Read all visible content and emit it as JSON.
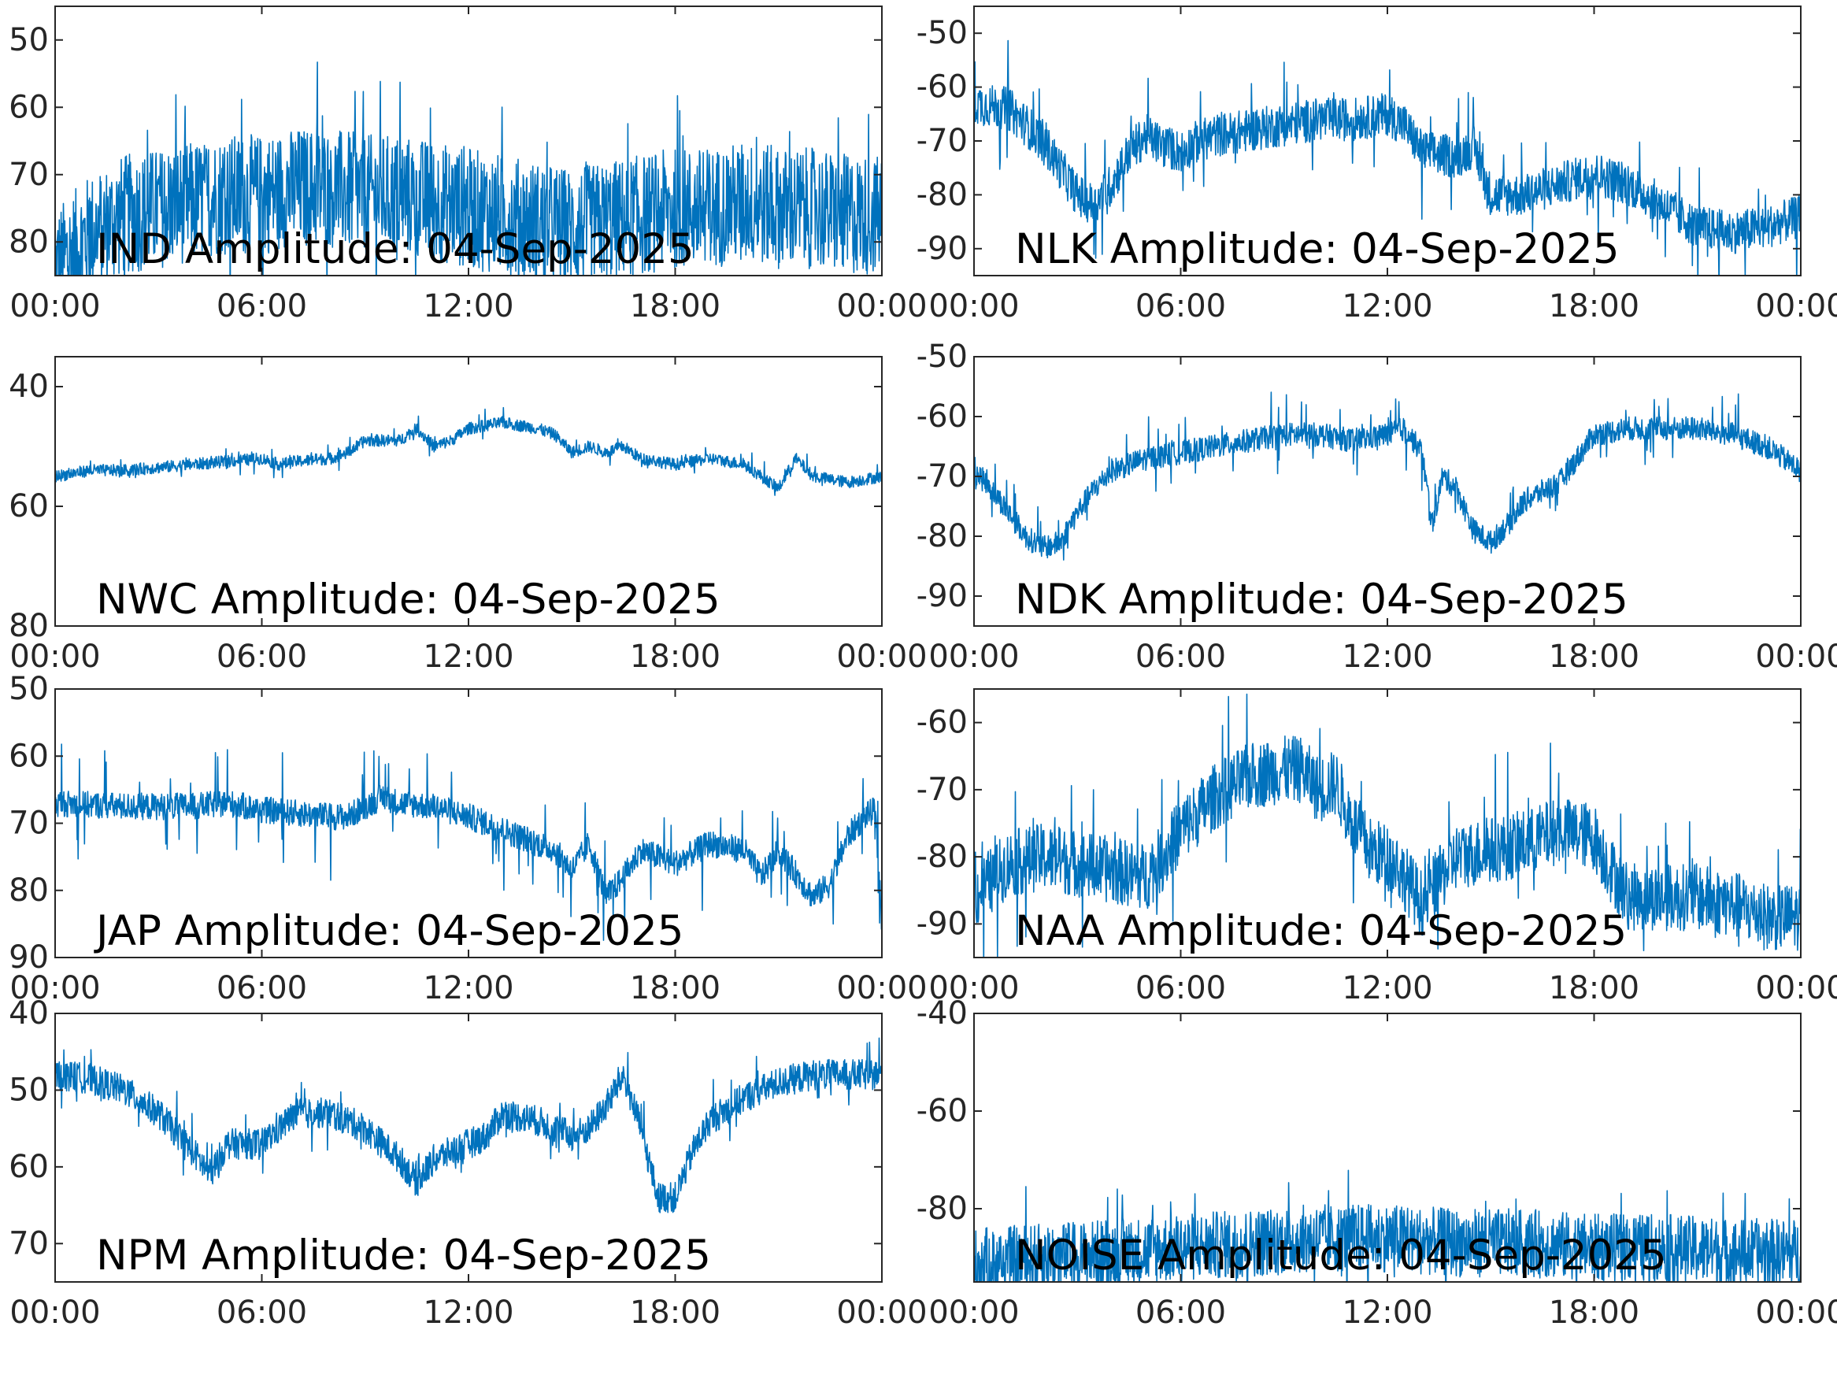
{
  "chart_data": [
    {
      "type": "line",
      "title": "IND Amplitude: 04-Sep-2025",
      "x_ticks": [
        "00:00",
        "06:00",
        "12:00",
        "18:00",
        "00:00"
      ],
      "y_ticks": [
        "50",
        "60",
        "70",
        "80"
      ],
      "y_tick_values": [
        -50,
        -60,
        -70,
        -80
      ],
      "ylim": [
        -85,
        -45
      ],
      "series": [
        {
          "points": [
            [
              0,
              -84
            ],
            [
              1,
              -79
            ],
            [
              2,
              -76
            ],
            [
              3,
              -75
            ],
            [
              4,
              -74
            ],
            [
              5,
              -73
            ],
            [
              6,
              -73
            ],
            [
              7,
              -72
            ],
            [
              8,
              -72
            ],
            [
              9,
              -73
            ],
            [
              10,
              -73
            ],
            [
              11,
              -74
            ],
            [
              12,
              -75
            ],
            [
              13,
              -76
            ],
            [
              14,
              -77
            ],
            [
              15,
              -78
            ],
            [
              16,
              -77
            ],
            [
              17,
              -76
            ],
            [
              18,
              -75
            ],
            [
              19,
              -75
            ],
            [
              20,
              -74
            ],
            [
              21,
              -75
            ],
            [
              22,
              -75
            ],
            [
              23,
              -76
            ],
            [
              24,
              -76
            ]
          ],
          "band": 9,
          "spike": 6
        }
      ]
    },
    {
      "type": "line",
      "title": "NLK Amplitude: 04-Sep-2025",
      "x_ticks": [
        "00:00",
        "06:00",
        "12:00",
        "18:00",
        "00:00"
      ],
      "y_ticks": [
        "-50",
        "-60",
        "-70",
        "-80",
        "-90"
      ],
      "y_tick_values": [
        -50,
        -60,
        -70,
        -80,
        -90
      ],
      "ylim": [
        -95,
        -45
      ],
      "series": [
        {
          "points": [
            [
              0,
              -63
            ],
            [
              1,
              -64
            ],
            [
              2,
              -70
            ],
            [
              3,
              -80
            ],
            [
              3.5,
              -82
            ],
            [
              4,
              -78
            ],
            [
              4.5,
              -72
            ],
            [
              5,
              -69
            ],
            [
              5.5,
              -71
            ],
            [
              6,
              -72
            ],
            [
              6.5,
              -70
            ],
            [
              7,
              -69
            ],
            [
              8,
              -68
            ],
            [
              9,
              -67
            ],
            [
              10,
              -66
            ],
            [
              11,
              -66
            ],
            [
              12,
              -65
            ],
            [
              12.5,
              -67
            ],
            [
              13,
              -72
            ],
            [
              14,
              -73
            ],
            [
              14.5,
              -71
            ],
            [
              15,
              -80
            ],
            [
              16,
              -80
            ],
            [
              17,
              -78
            ],
            [
              18,
              -76
            ],
            [
              19,
              -78
            ],
            [
              20,
              -82
            ],
            [
              21,
              -86
            ],
            [
              22,
              -87
            ],
            [
              23,
              -86
            ],
            [
              24,
              -84
            ]
          ],
          "band": 4,
          "spike": 5
        }
      ]
    },
    {
      "type": "line",
      "title": "NWC Amplitude: 04-Sep-2025",
      "x_ticks": [
        "00:00",
        "06:00",
        "12:00",
        "18:00",
        "00:00"
      ],
      "y_ticks": [
        "40",
        "60",
        "80"
      ],
      "y_tick_values": [
        -40,
        -60,
        -80
      ],
      "ylim": [
        -80,
        -35
      ],
      "series": [
        {
          "points": [
            [
              0,
              -55
            ],
            [
              1,
              -54
            ],
            [
              2,
              -54
            ],
            [
              3,
              -53.5
            ],
            [
              4,
              -53
            ],
            [
              5,
              -52.5
            ],
            [
              6,
              -52
            ],
            [
              6.5,
              -53
            ],
            [
              7,
              -52.5
            ],
            [
              8,
              -52
            ],
            [
              8.5,
              -51
            ],
            [
              9,
              -49
            ],
            [
              10,
              -49
            ],
            [
              10.5,
              -47
            ],
            [
              11,
              -50
            ],
            [
              11.5,
              -49
            ],
            [
              12,
              -47
            ],
            [
              13,
              -46
            ],
            [
              14,
              -47
            ],
            [
              14.5,
              -48
            ],
            [
              15,
              -51
            ],
            [
              15.5,
              -50
            ],
            [
              16,
              -51
            ],
            [
              16.5,
              -50
            ],
            [
              17,
              -52
            ],
            [
              18,
              -53
            ],
            [
              19,
              -52
            ],
            [
              20,
              -53
            ],
            [
              20.5,
              -55
            ],
            [
              21,
              -57
            ],
            [
              21.5,
              -52
            ],
            [
              22,
              -55
            ],
            [
              23,
              -56
            ],
            [
              24,
              -55
            ]
          ],
          "band": 1,
          "spike": 1
        }
      ]
    },
    {
      "type": "line",
      "title": "NDK Amplitude: 04-Sep-2025",
      "x_ticks": [
        "00:00",
        "06:00",
        "12:00",
        "18:00",
        "00:00"
      ],
      "y_ticks": [
        "-50",
        "-60",
        "-70",
        "-80",
        "-90"
      ],
      "y_tick_values": [
        -50,
        -60,
        -70,
        -80,
        -90
      ],
      "ylim": [
        -95,
        -50
      ],
      "series": [
        {
          "points": [
            [
              0,
              -69
            ],
            [
              0.5,
              -72
            ],
            [
              1,
              -76
            ],
            [
              1.5,
              -80
            ],
            [
              2,
              -82
            ],
            [
              2.5,
              -81
            ],
            [
              3,
              -76
            ],
            [
              3.5,
              -72
            ],
            [
              4,
              -69
            ],
            [
              5,
              -67
            ],
            [
              6,
              -66
            ],
            [
              7,
              -65
            ],
            [
              8,
              -64
            ],
            [
              9,
              -63
            ],
            [
              10,
              -63
            ],
            [
              11,
              -64
            ],
            [
              12,
              -63
            ],
            [
              12.5,
              -62
            ],
            [
              13,
              -66
            ],
            [
              13.3,
              -78
            ],
            [
              13.6,
              -70
            ],
            [
              14,
              -72
            ],
            [
              14.5,
              -79
            ],
            [
              15,
              -81
            ],
            [
              15.5,
              -78
            ],
            [
              16,
              -74
            ],
            [
              17,
              -71
            ],
            [
              17.5,
              -67
            ],
            [
              18,
              -63
            ],
            [
              19,
              -62
            ],
            [
              20,
              -62
            ],
            [
              21,
              -62
            ],
            [
              22,
              -63
            ],
            [
              23,
              -65
            ],
            [
              24,
              -69
            ]
          ],
          "band": 2,
          "spike": 3
        }
      ]
    },
    {
      "type": "line",
      "title": "JAP Amplitude: 04-Sep-2025",
      "x_ticks": [
        "00:00",
        "06:00",
        "12:00",
        "18:00",
        "00:00"
      ],
      "y_ticks": [
        "50",
        "60",
        "70",
        "80",
        "90"
      ],
      "y_tick_values": [
        -50,
        -60,
        -70,
        -80,
        -90
      ],
      "ylim": [
        -90,
        -50
      ],
      "series": [
        {
          "points": [
            [
              0,
              -67
            ],
            [
              2,
              -67.5
            ],
            [
              4,
              -67.5
            ],
            [
              5,
              -67
            ],
            [
              6,
              -68
            ],
            [
              7,
              -68.5
            ],
            [
              8,
              -69
            ],
            [
              8.5,
              -69
            ],
            [
              9.5,
              -66
            ],
            [
              10,
              -67
            ],
            [
              11,
              -67.5
            ],
            [
              12,
              -69
            ],
            [
              13,
              -71
            ],
            [
              14,
              -73
            ],
            [
              14.5,
              -74
            ],
            [
              15,
              -77
            ],
            [
              15.5,
              -73
            ],
            [
              16,
              -81
            ],
            [
              16.5,
              -78
            ],
            [
              17,
              -74
            ],
            [
              18,
              -76
            ],
            [
              19,
              -73
            ],
            [
              20,
              -74
            ],
            [
              20.5,
              -78
            ],
            [
              21,
              -74
            ],
            [
              22,
              -81
            ],
            [
              22.5,
              -79
            ],
            [
              23,
              -72
            ],
            [
              23.5,
              -69
            ],
            [
              23.8,
              -68
            ],
            [
              24,
              -85
            ]
          ],
          "band": 2,
          "spike": 4
        }
      ]
    },
    {
      "type": "line",
      "title": "NAA Amplitude: 04-Sep-2025",
      "x_ticks": [
        "00:00",
        "06:00",
        "12:00",
        "18:00",
        "00:00"
      ],
      "y_ticks": [
        "-60",
        "-70",
        "-80",
        "-90"
      ],
      "y_tick_values": [
        -60,
        -70,
        -80,
        -90
      ],
      "ylim": [
        -95,
        -55
      ],
      "series": [
        {
          "points": [
            [
              0,
              -86
            ],
            [
              1,
              -81
            ],
            [
              2,
              -80
            ],
            [
              3,
              -81
            ],
            [
              4,
              -82
            ],
            [
              5,
              -83
            ],
            [
              5.5,
              -80
            ],
            [
              6,
              -76
            ],
            [
              7,
              -71
            ],
            [
              8,
              -68
            ],
            [
              9,
              -67
            ],
            [
              9.5,
              -67
            ],
            [
              10,
              -70
            ],
            [
              10.5,
              -69
            ],
            [
              11,
              -75
            ],
            [
              11.5,
              -79
            ],
            [
              12,
              -80
            ],
            [
              12.5,
              -83
            ],
            [
              13,
              -87
            ],
            [
              14,
              -80
            ],
            [
              15,
              -79
            ],
            [
              16,
              -78
            ],
            [
              17,
              -76
            ],
            [
              18,
              -77
            ],
            [
              18.5,
              -82
            ],
            [
              19,
              -86
            ],
            [
              20,
              -86
            ],
            [
              21,
              -86
            ],
            [
              22,
              -87
            ],
            [
              23,
              -89
            ],
            [
              24,
              -89
            ]
          ],
          "band": 5,
          "spike": 5
        }
      ]
    },
    {
      "type": "line",
      "title": "NPM Amplitude: 04-Sep-2025",
      "x_ticks": [
        "00:00",
        "06:00",
        "12:00",
        "18:00",
        "00:00"
      ],
      "y_ticks": [
        "40",
        "50",
        "60",
        "70"
      ],
      "y_tick_values": [
        -40,
        -50,
        -60,
        -70
      ],
      "ylim": [
        -75,
        -40
      ],
      "series": [
        {
          "points": [
            [
              0,
              -48
            ],
            [
              1,
              -48.5
            ],
            [
              2,
              -50
            ],
            [
              3,
              -53
            ],
            [
              4,
              -58
            ],
            [
              4.5,
              -61
            ],
            [
              5,
              -57
            ],
            [
              6,
              -57
            ],
            [
              7,
              -53
            ],
            [
              8,
              -53
            ],
            [
              9,
              -55
            ],
            [
              10,
              -59
            ],
            [
              10.5,
              -62
            ],
            [
              11,
              -59
            ],
            [
              12,
              -57
            ],
            [
              12.5,
              -56
            ],
            [
              13,
              -53
            ],
            [
              14,
              -54
            ],
            [
              15,
              -56
            ],
            [
              15.5,
              -55
            ],
            [
              16,
              -52
            ],
            [
              16.5,
              -48
            ],
            [
              17,
              -55
            ],
            [
              17.5,
              -64
            ],
            [
              18,
              -64
            ],
            [
              18.5,
              -58
            ],
            [
              19,
              -54
            ],
            [
              20,
              -51
            ],
            [
              21,
              -49
            ],
            [
              22,
              -48
            ],
            [
              23,
              -48
            ],
            [
              24,
              -48
            ]
          ],
          "band": 2,
          "spike": 2
        }
      ]
    },
    {
      "type": "line",
      "title": "NOISE Amplitude: 04-Sep-2025",
      "x_ticks": [
        "00:00",
        "06:00",
        "12:00",
        "18:00",
        "00:00"
      ],
      "y_ticks": [
        "-40",
        "-60",
        "-80"
      ],
      "y_tick_values": [
        -40,
        -60,
        -80
      ],
      "ylim": [
        -95,
        -40
      ],
      "series": [
        {
          "points": [
            [
              0,
              -91
            ],
            [
              2,
              -90
            ],
            [
              4,
              -89
            ],
            [
              6,
              -88
            ],
            [
              8,
              -87
            ],
            [
              10,
              -86
            ],
            [
              12,
              -86
            ],
            [
              14,
              -87
            ],
            [
              16,
              -87
            ],
            [
              18,
              -88
            ],
            [
              20,
              -88
            ],
            [
              22,
              -89
            ],
            [
              24,
              -89
            ]
          ],
          "band": 7,
          "spike": 5
        }
      ]
    }
  ],
  "colors": {
    "line": "#0072bd",
    "axis": "#262626"
  },
  "x_domain_hours": [
    0,
    24
  ],
  "x_tick_hours": [
    0,
    6,
    12,
    18,
    24
  ]
}
